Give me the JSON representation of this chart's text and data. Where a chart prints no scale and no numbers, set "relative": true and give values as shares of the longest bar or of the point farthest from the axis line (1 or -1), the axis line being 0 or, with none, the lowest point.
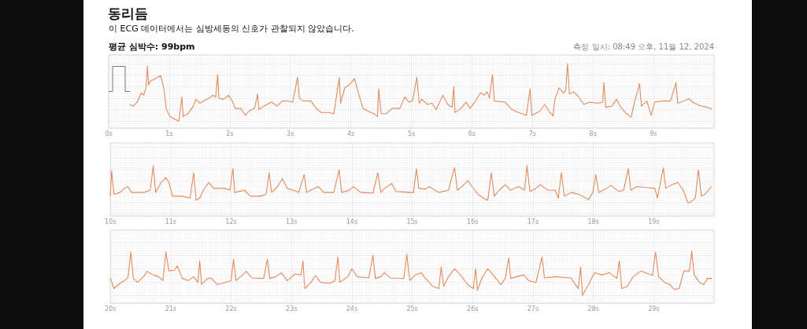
{
  "chart_data": [
    {
      "type": "line",
      "title": "동리듬",
      "subtitle": "이 ECG 데이터에서는 심방세동의 신호가 관찰되지 않았습니다.",
      "annotations": [
        "평균 심박수: 99bpm",
        "측정 일시: 08:49 오후, 11월 12, 2024"
      ],
      "relative": true,
      "grid": true,
      "marker": "none",
      "xlim": [
        0,
        10
      ],
      "xticks": [
        {
          "value": 0,
          "label": "0s"
        },
        {
          "value": 1,
          "label": "1s"
        },
        {
          "value": 2,
          "label": "2s"
        },
        {
          "value": 3,
          "label": "3s"
        },
        {
          "value": 4,
          "label": "4s"
        },
        {
          "value": 5,
          "label": "5s"
        },
        {
          "value": 6,
          "label": "6s"
        },
        {
          "value": 7,
          "label": "7s"
        },
        {
          "value": 8,
          "label": "8s"
        },
        {
          "value": 9,
          "label": "9s"
        }
      ],
      "series": [
        {
          "color": "#e58a5d",
          "x": [
            0.35,
            0.41,
            0.47,
            0.54,
            0.58,
            0.62,
            0.64,
            0.66,
            0.69,
            0.75,
            0.8,
            0.86,
            0.91,
            0.95,
            1.01,
            1.08,
            1.16,
            1.21,
            1.23,
            1.31,
            1.4,
            1.44,
            1.51,
            1.57,
            1.66,
            1.72,
            1.77,
            1.8,
            1.82,
            1.9,
            1.98,
            2.05,
            2.09,
            2.18,
            2.26,
            2.31,
            2.41,
            2.46,
            2.48,
            2.56,
            2.69,
            2.78,
            2.87,
            2.95,
            3.04,
            3.12,
            3.15,
            3.21,
            3.34,
            3.43,
            3.51,
            3.64,
            3.72,
            3.81,
            3.83,
            3.9,
            3.97,
            4.01,
            4.06,
            4.12,
            4.2,
            4.29,
            4.38,
            4.44,
            4.46,
            4.5,
            4.59,
            4.68,
            4.81,
            4.89,
            4.96,
            5.02,
            5.09,
            5.13,
            5.17,
            5.26,
            5.34,
            5.41,
            5.52,
            5.6,
            5.67,
            5.7,
            5.72,
            5.82,
            5.9,
            5.97,
            6.06,
            6.14,
            6.21,
            6.25,
            6.29,
            6.34,
            6.37,
            6.55,
            6.66,
            6.77,
            6.9,
            6.96,
            6.99,
            7.12,
            7.2,
            7.29,
            7.34,
            7.37,
            7.44,
            7.51,
            7.55,
            7.58,
            7.61,
            7.68,
            7.74,
            7.85,
            7.94,
            8.07,
            8.16,
            8.18,
            8.21,
            8.31,
            8.39,
            8.46,
            8.55,
            8.63,
            8.69,
            8.77,
            8.8,
            8.89,
            8.96,
            9.02,
            9.15,
            9.28,
            9.37,
            9.4,
            9.5,
            9.58,
            9.67,
            9.8,
            9.89,
            9.96
          ],
          "values": [
            0.29,
            0.26,
            0.33,
            0.49,
            0.45,
            0.6,
            0.95,
            0.63,
            0.7,
            0.72,
            0.76,
            0.79,
            0.58,
            0.22,
            0.08,
            0.04,
            0,
            0.42,
            0.08,
            0.13,
            0.26,
            0.38,
            0.31,
            0.35,
            0.4,
            0.45,
            0.42,
            0.81,
            0.4,
            0.38,
            0.45,
            0.33,
            0.22,
            0.22,
            0.1,
            0.17,
            0.22,
            0.47,
            0.2,
            0.26,
            0.33,
            0.26,
            0.35,
            0.35,
            0.33,
            0.76,
            0.4,
            0.35,
            0.35,
            0.22,
            0.15,
            0.15,
            0.13,
            0.76,
            0.31,
            0.58,
            0.63,
            0.67,
            0.74,
            0.51,
            0.22,
            0.17,
            0.13,
            0.08,
            0.56,
            0.13,
            0.13,
            0.22,
            0.22,
            0.42,
            0.33,
            0.35,
            0.76,
            0.31,
            0.38,
            0.29,
            0.31,
            0.2,
            0.45,
            0.29,
            0.24,
            0.6,
            0.15,
            0.22,
            0.33,
            0.22,
            0.35,
            0.49,
            0.45,
            0.51,
            0.4,
            0.81,
            0.35,
            0.33,
            0.2,
            0.15,
            0.1,
            0.56,
            0.1,
            0.17,
            0.29,
            0.15,
            0.09,
            0.38,
            0.58,
            0.49,
            0.54,
            1,
            0.47,
            0.51,
            0.45,
            0.29,
            0.33,
            0.31,
            0.33,
            0.67,
            0.24,
            0.26,
            0.38,
            0.24,
            0.13,
            0.07,
            0.35,
            0.65,
            0.26,
            0.35,
            0.1,
            0.33,
            0.35,
            0.35,
            0.67,
            0.31,
            0.35,
            0.39,
            0.31,
            0.26,
            0.24,
            0.21
          ]
        }
      ]
    },
    {
      "type": "line",
      "relative": true,
      "grid": true,
      "marker": "none",
      "xlim": [
        10,
        20
      ],
      "xticks": [
        {
          "value": 10,
          "label": "10s"
        },
        {
          "value": 11,
          "label": "11s"
        },
        {
          "value": 12,
          "label": "12s"
        },
        {
          "value": 13,
          "label": "13s"
        },
        {
          "value": 14,
          "label": "14s"
        },
        {
          "value": 15,
          "label": "15s"
        },
        {
          "value": 16,
          "label": "16s"
        },
        {
          "value": 17,
          "label": "17s"
        },
        {
          "value": 18,
          "label": "18s"
        },
        {
          "value": 19,
          "label": "19s"
        }
      ],
      "series": [
        {
          "color": "#e58a5d",
          "x": [
            10.0,
            10.02,
            10.06,
            10.16,
            10.23,
            10.29,
            10.35,
            10.55,
            10.66,
            10.71,
            10.75,
            10.84,
            10.92,
            10.97,
            11.03,
            11.19,
            11.32,
            11.38,
            11.42,
            11.48,
            11.54,
            11.63,
            11.71,
            11.9,
            11.98,
            12.03,
            12.06,
            12.22,
            12.32,
            12.48,
            12.58,
            12.63,
            12.67,
            12.77,
            12.85,
            12.93,
            13.03,
            13.12,
            13.21,
            13.25,
            13.38,
            13.44,
            13.54,
            13.7,
            13.79,
            13.83,
            13.96,
            14.02,
            14.15,
            14.35,
            14.43,
            14.48,
            14.54,
            14.66,
            14.73,
            14.93,
            15.02,
            15.07,
            15.11,
            15.22,
            15.28,
            15.44,
            15.6,
            15.7,
            15.75,
            15.86,
            15.92,
            15.99,
            16.09,
            16.18,
            16.25,
            16.31,
            16.36,
            16.44,
            16.54,
            16.63,
            16.76,
            16.86,
            16.9,
            16.95,
            17.05,
            17.12,
            17.25,
            17.37,
            17.42,
            17.47,
            17.52,
            17.63,
            17.76,
            17.92,
            17.99,
            18.04,
            18.09,
            18.22,
            18.29,
            18.42,
            18.5,
            18.58,
            18.62,
            18.72,
            18.89,
            19.02,
            19.06,
            19.16,
            19.2,
            19.3,
            19.4,
            19.49,
            19.56,
            19.59,
            19.69,
            19.74,
            19.79,
            19.85,
            19.96
          ],
          "values": [
            0.18,
            0.86,
            0.23,
            0.28,
            0.39,
            0.44,
            0.28,
            0.28,
            0.34,
            1,
            0.28,
            0.55,
            0.68,
            0.55,
            0.18,
            0.18,
            0.13,
            0.81,
            0.07,
            0.13,
            0.34,
            0.55,
            0.39,
            0.39,
            0.34,
            0.92,
            0.28,
            0.34,
            0.18,
            0.18,
            0.23,
            0.81,
            0.28,
            0.44,
            0.65,
            0.39,
            0.34,
            0.28,
            0.76,
            0.28,
            0.39,
            0.44,
            0.28,
            0.28,
            0.89,
            0.28,
            0.34,
            0.44,
            0.28,
            0.26,
            0.81,
            0.28,
            0.39,
            0.52,
            0.31,
            0.28,
            0.28,
            0.92,
            0.39,
            0.37,
            0.44,
            0.28,
            0.34,
            0.95,
            0.34,
            0.49,
            0.6,
            0.44,
            0.23,
            0.13,
            0.07,
            0.81,
            0.18,
            0.34,
            0.49,
            0.34,
            0.44,
            0.34,
            1,
            0.31,
            0.39,
            0.49,
            0.34,
            0.34,
            0.13,
            0.81,
            0.18,
            0.28,
            0.23,
            0.09,
            0.28,
            0.76,
            0.28,
            0.39,
            0.47,
            0.31,
            0.34,
            0.92,
            0.34,
            0.44,
            0.41,
            0.39,
            0.13,
            0.94,
            0.39,
            0.49,
            0.55,
            0.34,
            0.02,
            0,
            0.13,
            0.89,
            0.18,
            0.23,
            0.44
          ]
        }
      ]
    },
    {
      "type": "line",
      "relative": true,
      "grid": true,
      "marker": "none",
      "xlim": [
        20,
        30
      ],
      "xticks": [
        {
          "value": 20,
          "label": "20s"
        },
        {
          "value": 21,
          "label": "21s"
        },
        {
          "value": 22,
          "label": "22s"
        },
        {
          "value": 23,
          "label": "23s"
        },
        {
          "value": 24,
          "label": "24s"
        },
        {
          "value": 25,
          "label": "25s"
        },
        {
          "value": 26,
          "label": "26s"
        },
        {
          "value": 27,
          "label": "27s"
        },
        {
          "value": 28,
          "label": "28s"
        },
        {
          "value": 29,
          "label": "29s"
        }
      ],
      "series": [
        {
          "color": "#e58a5d",
          "x": [
            20.0,
            20.06,
            20.13,
            20.23,
            20.29,
            20.34,
            20.38,
            20.45,
            20.55,
            20.61,
            20.71,
            20.8,
            20.87,
            20.92,
            20.97,
            21.06,
            21.11,
            21.19,
            21.29,
            21.38,
            21.45,
            21.48,
            21.51,
            21.61,
            21.67,
            21.77,
            21.9,
            22.0,
            22.04,
            22.08,
            22.19,
            22.25,
            22.35,
            22.54,
            22.6,
            22.64,
            22.74,
            22.83,
            22.93,
            23.06,
            23.16,
            23.19,
            23.22,
            23.32,
            23.4,
            23.48,
            23.64,
            23.72,
            23.77,
            23.8,
            23.93,
            24.0,
            24.09,
            24.28,
            24.35,
            24.39,
            24.48,
            24.54,
            24.64,
            24.86,
            24.91,
            24.96,
            25.05,
            25.15,
            25.22,
            25.34,
            25.44,
            25.48,
            25.52,
            25.6,
            25.7,
            25.8,
            25.92,
            26.01,
            26.05,
            26.08,
            26.15,
            26.25,
            26.34,
            26.47,
            26.54,
            26.6,
            26.63,
            26.73,
            26.85,
            26.93,
            27.05,
            27.15,
            27.19,
            27.37,
            27.63,
            27.75,
            27.79,
            27.82,
            27.92,
            28.02,
            28.15,
            28.27,
            28.39,
            28.43,
            28.47,
            28.56,
            28.66,
            28.79,
            28.92,
            28.98,
            29.03,
            29.08,
            29.18,
            29.27,
            29.34,
            29.42,
            29.5,
            29.59,
            29.63,
            29.67,
            29.76,
            29.83,
            29.89,
            29.96
          ],
          "values": [
            0.39,
            0.15,
            0.24,
            0.33,
            0.39,
            0.98,
            0.38,
            0.29,
            0.42,
            0.54,
            0.46,
            0.42,
            0.33,
            0.98,
            0.55,
            0.57,
            0.66,
            0.38,
            0.33,
            0.42,
            0.29,
            0.78,
            0.24,
            0.38,
            0.39,
            0.24,
            0.29,
            0.33,
            0.82,
            0.33,
            0.46,
            0.54,
            0.39,
            0.38,
            0.82,
            0.38,
            0.42,
            0.51,
            0.33,
            0.48,
            0.46,
            0.78,
            0.15,
            0.29,
            0.45,
            0.29,
            0.27,
            0.33,
            0.87,
            0.29,
            0.42,
            0.6,
            0.42,
            0.39,
            0.91,
            0.38,
            0.42,
            0.51,
            0.39,
            0.38,
            0.93,
            0.33,
            0.46,
            0.51,
            0.38,
            0.2,
            0.15,
            0.64,
            0.2,
            0.42,
            0.6,
            0.46,
            0.24,
            0.15,
            0.6,
            0.11,
            0.38,
            0.6,
            0.46,
            0.24,
            0.38,
            0.85,
            0.38,
            0.42,
            0.46,
            0.33,
            0.29,
            0.87,
            0.39,
            0.42,
            0.39,
            0.15,
            0.64,
            0,
            0.24,
            0.51,
            0.46,
            0.51,
            0.38,
            0.78,
            0.15,
            0.2,
            0.42,
            0.55,
            0.48,
            0.45,
            0.98,
            0.42,
            0.29,
            0.24,
            0.13,
            0.15,
            0.55,
            0.55,
            1,
            0.46,
            0.29,
            0.24,
            0.38,
            0.38
          ]
        }
      ]
    }
  ]
}
